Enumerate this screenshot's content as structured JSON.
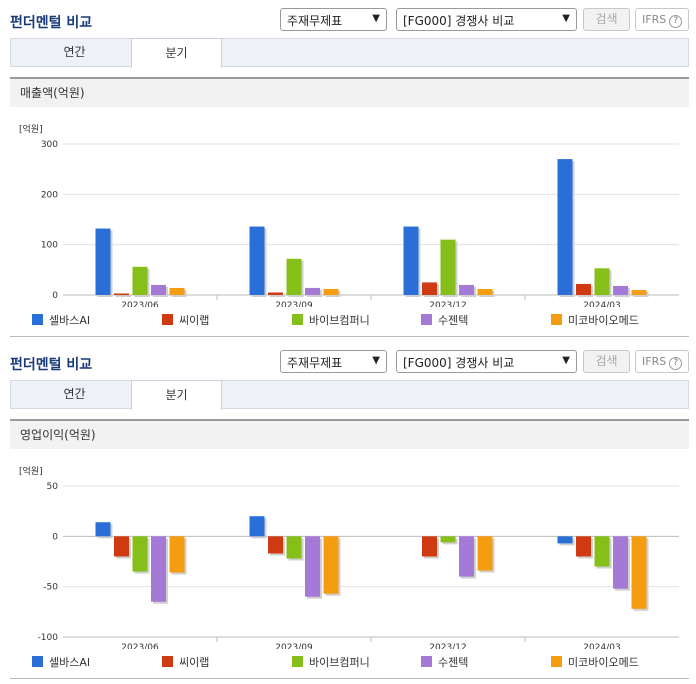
{
  "panels": [
    {
      "title": "펀더멘털 비교",
      "select1": "주재무제표",
      "select2": "[FG000] 경쟁사 비교",
      "search_label": "검색",
      "ifrs_label": "IFRS",
      "ifrs_help": "?",
      "tabs": [
        "연간",
        "분기"
      ],
      "active_tab": "분기",
      "metric_title": "매출액(억원)",
      "unit": "[억원]"
    },
    {
      "title": "펀더멘털 비교",
      "select1": "주재무제표",
      "select2": "[FG000] 경쟁사 비교",
      "search_label": "검색",
      "ifrs_label": "IFRS",
      "ifrs_help": "?",
      "tabs": [
        "연간",
        "분기"
      ],
      "active_tab": "분기",
      "metric_title": "영업이익(억원)",
      "unit": "[억원]"
    }
  ],
  "colors": [
    "#2a6ed8",
    "#d03a12",
    "#86bf19",
    "#a57ad6",
    "#f59d11"
  ],
  "chart_data": [
    {
      "type": "bar",
      "title": "매출액(억원)",
      "ylabel": "[억원]",
      "categories": [
        "2023/06",
        "2023/09",
        "2023/12",
        "2024/03"
      ],
      "ylim": [
        0,
        300
      ],
      "yticks": [
        0,
        100,
        200,
        300
      ],
      "series": [
        {
          "name": "셀바스AI",
          "values": [
            132,
            136,
            136,
            270
          ]
        },
        {
          "name": "씨이랩",
          "values": [
            3,
            5,
            25,
            22
          ]
        },
        {
          "name": "바이브컴퍼니",
          "values": [
            56,
            72,
            110,
            53
          ]
        },
        {
          "name": "수젠텍",
          "values": [
            20,
            14,
            20,
            18
          ]
        },
        {
          "name": "미코바이오메드",
          "values": [
            14,
            12,
            12,
            10
          ]
        }
      ]
    },
    {
      "type": "bar",
      "title": "영업이익(억원)",
      "ylabel": "[억원]",
      "categories": [
        "2023/06",
        "2023/09",
        "2023/12",
        "2024/03"
      ],
      "ylim": [
        -100,
        50
      ],
      "yticks": [
        -100,
        -50,
        0,
        50
      ],
      "series": [
        {
          "name": "셀바스AI",
          "values": [
            14,
            20,
            0,
            -7
          ]
        },
        {
          "name": "씨이랩",
          "values": [
            -20,
            -17,
            -20,
            -20
          ]
        },
        {
          "name": "바이브컴퍼니",
          "values": [
            -35,
            -22,
            -6,
            -30
          ]
        },
        {
          "name": "수젠텍",
          "values": [
            -65,
            -60,
            -40,
            -52
          ]
        },
        {
          "name": "미코바이오메드",
          "values": [
            -36,
            -57,
            -34,
            -72
          ]
        }
      ]
    }
  ]
}
